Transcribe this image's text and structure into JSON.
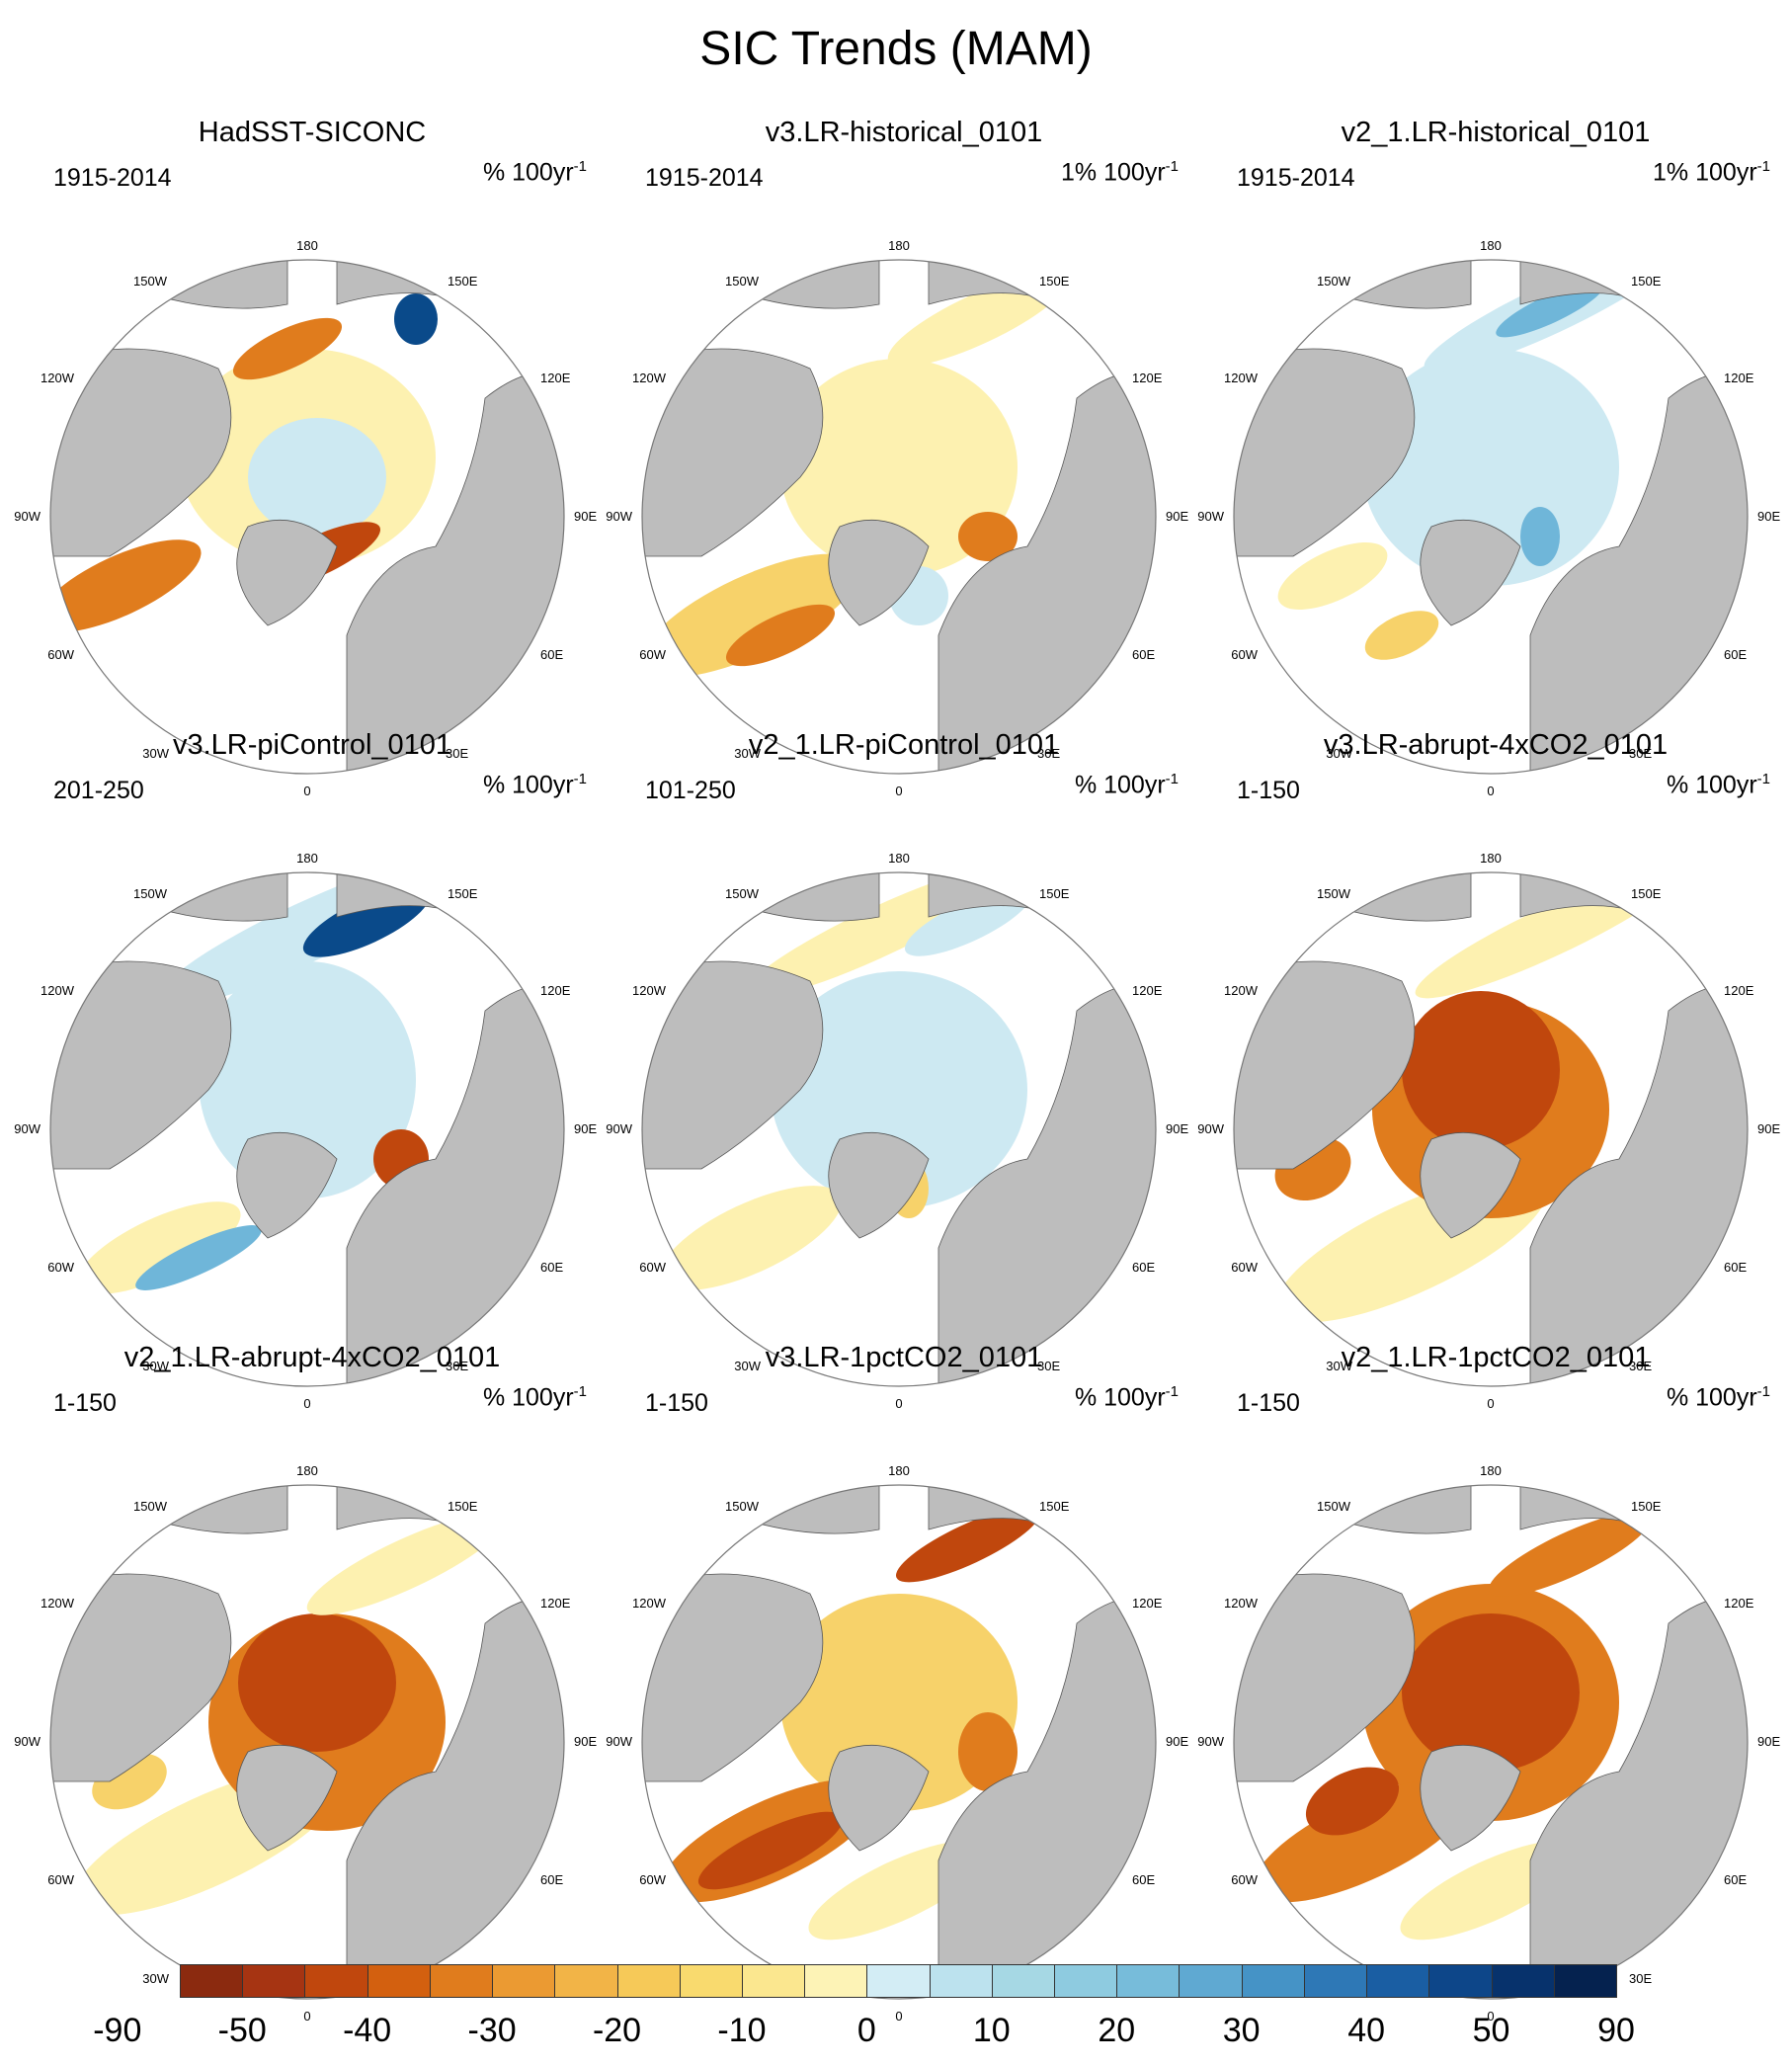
{
  "title": "SIC Trends (MAM)",
  "colors": {
    "land": "#bdbdbd",
    "ocean": "#ffffff",
    "neg_strong": "#c0470d",
    "neg_mid": "#e07c1d",
    "neg_weak": "#f7d26a",
    "neg_faint": "#fdf1b0",
    "pos_faint": "#cde9f2",
    "pos_mid": "#6fb6d9",
    "pos_strong": "#0a4a8a"
  },
  "longitude_labels": {
    "top": "180",
    "bottom": "0",
    "left": "90W",
    "right": "90E",
    "w150": "150W",
    "e150": "150E",
    "w120": "120W",
    "e120": "120E",
    "w60": "60W",
    "e60": "60E",
    "w30": "30W",
    "e30": "30E"
  },
  "panels": [
    {
      "title": "HadSST-SICONC",
      "period": "1915-2014",
      "units": "% 100yr",
      "units_sup": "-1",
      "pattern": "obs"
    },
    {
      "title": "v3.LR-historical_0101",
      "period": "1915-2014",
      "units": "1% 100yr",
      "units_sup": "-1",
      "pattern": "hist_v3"
    },
    {
      "title": "v2_1.LR-historical_0101",
      "period": "1915-2014",
      "units": "1% 100yr",
      "units_sup": "-1",
      "pattern": "hist_v2"
    },
    {
      "title": "v3.LR-piControl_0101",
      "period": "201-250",
      "units": "% 100yr",
      "units_sup": "-1",
      "pattern": "pic_v3"
    },
    {
      "title": "v2_1.LR-piControl_0101",
      "period": "101-250",
      "units": "% 100yr",
      "units_sup": "-1",
      "pattern": "pic_v2"
    },
    {
      "title": "v3.LR-abrupt-4xCO2_0101",
      "period": "1-150",
      "units": "% 100yr",
      "units_sup": "-1",
      "pattern": "abrupt_v3"
    },
    {
      "title": "v2_1.LR-abrupt-4xCO2_0101",
      "period": "1-150",
      "units": "% 100yr",
      "units_sup": "-1",
      "pattern": "abrupt_v2"
    },
    {
      "title": "v3.LR-1pctCO2_0101",
      "period": "1-150",
      "units": "% 100yr",
      "units_sup": "-1",
      "pattern": "pct_v3"
    },
    {
      "title": "v2_1.LR-1pctCO2_0101",
      "period": "1-150",
      "units": "% 100yr",
      "units_sup": "-1",
      "pattern": "pct_v2"
    }
  ],
  "colorbar": {
    "colors": [
      "#8b2a0f",
      "#a63412",
      "#c0470d",
      "#d3600f",
      "#e07c1d",
      "#eb9a32",
      "#f2b447",
      "#f6c958",
      "#f9da6e",
      "#fbe78f",
      "#fdf3b6",
      "#d3edf5",
      "#bce2ee",
      "#a6d8e4",
      "#8ecbe0",
      "#77bcda",
      "#5fa9d2",
      "#4593c6",
      "#2e78b6",
      "#1a5ea3",
      "#0d4689",
      "#07326c",
      "#05224f"
    ],
    "labels": [
      "-90",
      "-50",
      "-40",
      "-30",
      "-20",
      "-10",
      "0",
      "10",
      "20",
      "30",
      "40",
      "50",
      "90"
    ]
  }
}
